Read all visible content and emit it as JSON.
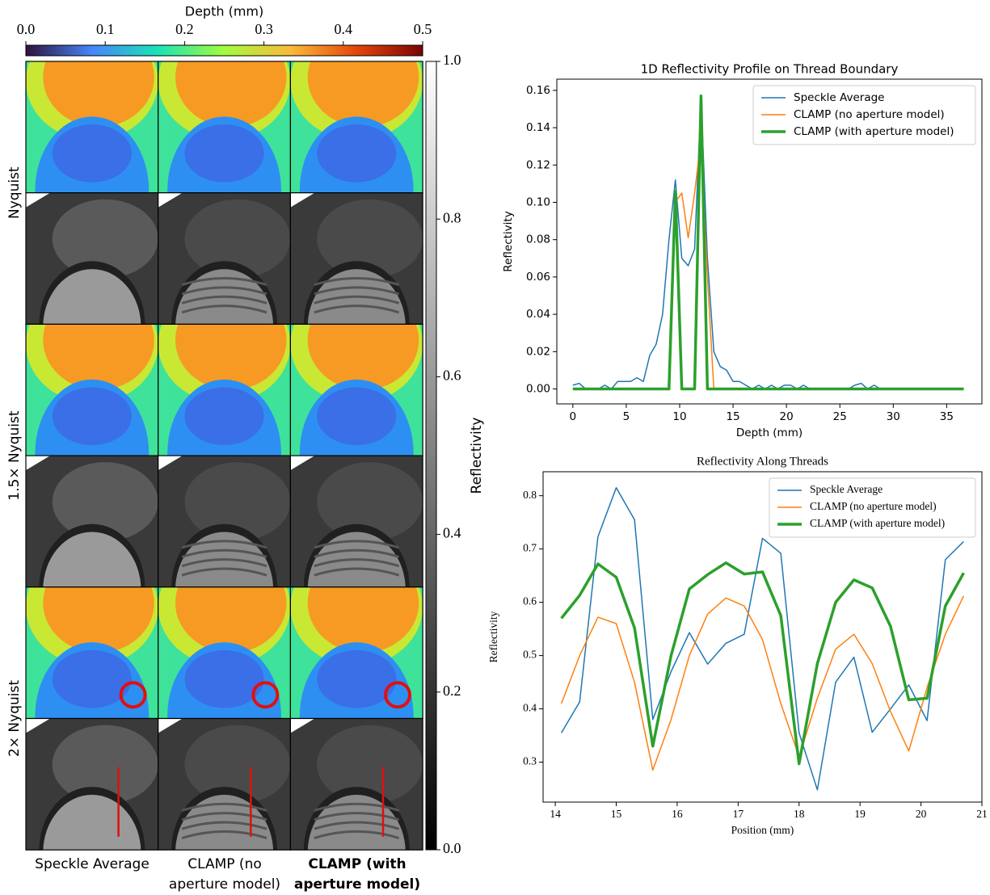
{
  "chart_data": [
    {
      "type": "image-grid",
      "row_labels": [
        "Nyquist",
        "1.5× Nyquist",
        "2× Nyquist"
      ],
      "column_labels": [
        "Speckle Average",
        "CLAMP (no aperture model)",
        "CLAMP (with aperture model)"
      ],
      "highlight_column": 2,
      "colorbars": [
        {
          "label": "Depth (mm)",
          "orientation": "horizontal",
          "lim": [
            0,
            0.5
          ],
          "ticks": [
            {
              "value": 0,
              "label": "0.0"
            },
            0.1,
            0.2,
            0.3,
            0.4,
            0.5
          ],
          "colors": [
            "#30123b",
            "#4686fb",
            "#1ae4b6",
            "#a2fc3c",
            "#faba39",
            "#e4460a",
            "#7a0403"
          ]
        },
        {
          "label": "Reflectivity",
          "orientation": "vertical",
          "lim": [
            0,
            1
          ],
          "ticks": [
            {
              "value": 0,
              "label": "0.0"
            },
            0.2,
            0.4,
            0.6,
            0.8,
            {
              "value": 1,
              "label": "1.0"
            }
          ],
          "colors": [
            "#000000",
            "#ffffff"
          ]
        }
      ]
    },
    {
      "type": "line",
      "title": "1D Reflectivity Profile on Thread Boundary",
      "x_label": "Depth (mm)",
      "y_label": "Reflectivity",
      "x": [
        0,
        0.6,
        1.2,
        1.8,
        2.4,
        3.0,
        3.6,
        4.2,
        4.8,
        5.4,
        6.0,
        6.6,
        7.2,
        7.8,
        8.4,
        9.0,
        9.6,
        10.2,
        10.8,
        11.4,
        12.0,
        12.6,
        13.2,
        13.8,
        14.4,
        15.0,
        15.6,
        16.2,
        16.8,
        17.4,
        18.0,
        18.6,
        19.2,
        19.8,
        20.4,
        21.0,
        21.6,
        22.2,
        22.8,
        23.4,
        24.0,
        24.6,
        25.2,
        25.8,
        26.4,
        27.0,
        27.6,
        28.2,
        28.8,
        29.4,
        30.0,
        30.6,
        31.2,
        31.8,
        32.4,
        33.0,
        33.6,
        34.2,
        34.8,
        35.4,
        36.0,
        36.6
      ],
      "series": [
        {
          "name": "Speckle Average",
          "color": "#1f77b4",
          "linewidth": 1.5,
          "values": [
            0.002,
            0.003,
            0,
            0,
            0,
            0.002,
            0,
            0.004,
            0.004,
            0.004,
            0.006,
            0.004,
            0.018,
            0.024,
            0.04,
            0.08,
            0.112,
            0.07,
            0.066,
            0.075,
            0.156,
            0.07,
            0.02,
            0.012,
            0.01,
            0.004,
            0.004,
            0.002,
            0,
            0.002,
            0,
            0.002,
            0,
            0.002,
            0.002,
            0,
            0.002,
            0,
            0,
            0,
            0,
            0,
            0,
            0,
            0.002,
            0.003,
            0,
            0.002,
            0,
            0,
            0,
            0,
            0,
            0,
            0,
            0,
            0,
            0,
            0,
            0,
            0,
            0
          ]
        },
        {
          "name": "CLAMP (no aperture model)",
          "color": "#ff7f0e",
          "linewidth": 1.5,
          "values": [
            0,
            0,
            0,
            0,
            0,
            0,
            0,
            0,
            0,
            0,
            0,
            0,
            0,
            0,
            0,
            0,
            0.1,
            0.105,
            0.081,
            0.105,
            0.134,
            0.06,
            0,
            0,
            0,
            0,
            0,
            0,
            0,
            0,
            0,
            0,
            0,
            0,
            0,
            0,
            0,
            0,
            0,
            0,
            0,
            0,
            0,
            0,
            0,
            0,
            0,
            0,
            0,
            0,
            0,
            0,
            0,
            0,
            0,
            0,
            0,
            0,
            0,
            0,
            0,
            0
          ]
        },
        {
          "name": "CLAMP (with aperture model)",
          "color": "#2ca02c",
          "linewidth": 3.5,
          "values": [
            0,
            0,
            0,
            0,
            0,
            0,
            0,
            0,
            0,
            0,
            0,
            0,
            0,
            0,
            0,
            0,
            0.106,
            0,
            0,
            0,
            0.157,
            0,
            0,
            0,
            0,
            0,
            0,
            0,
            0,
            0,
            0,
            0,
            0,
            0,
            0,
            0,
            0,
            0,
            0,
            0,
            0,
            0,
            0,
            0,
            0,
            0,
            0,
            0,
            0,
            0,
            0,
            0,
            0,
            0,
            0,
            0,
            0,
            0,
            0,
            0,
            0,
            0
          ]
        }
      ],
      "xlim": [
        -1.5,
        38.3
      ],
      "ylim": [
        -0.008,
        0.166
      ],
      "xticks": [
        0,
        5,
        10,
        15,
        20,
        25,
        30,
        35
      ],
      "yticks": [
        {
          "value": 0,
          "label": "0.00"
        },
        0.02,
        0.04,
        0.06,
        0.08,
        {
          "value": 0.1,
          "label": "0.10"
        },
        0.12,
        0.14,
        0.16
      ],
      "legend": "upper right"
    },
    {
      "type": "line",
      "title": "Reflectivity Along Threads",
      "x_label": "Position (mm)",
      "y_label": "Reflectivity",
      "x": [
        14.1,
        14.4,
        14.7,
        15.0,
        15.3,
        15.6,
        15.9,
        16.2,
        16.5,
        16.8,
        17.1,
        17.4,
        17.7,
        18.0,
        18.3,
        18.6,
        18.9,
        19.2,
        19.5,
        19.8,
        20.1,
        20.4,
        20.7
      ],
      "series": [
        {
          "name": "Speckle Average",
          "color": "#1f77b4",
          "linewidth": 1.5,
          "values": [
            0.355,
            0.413,
            0.723,
            0.815,
            0.755,
            0.38,
            0.47,
            0.543,
            0.484,
            0.523,
            0.54,
            0.72,
            0.692,
            0.355,
            0.248,
            0.45,
            0.497,
            0.356,
            0.4,
            0.445,
            0.378,
            0.68,
            0.714
          ]
        },
        {
          "name": "CLAMP (no aperture model)",
          "color": "#ff7f0e",
          "linewidth": 1.5,
          "values": [
            0.41,
            0.5,
            0.572,
            0.56,
            0.45,
            0.285,
            0.38,
            0.5,
            0.578,
            0.608,
            0.593,
            0.53,
            0.41,
            0.31,
            0.42,
            0.512,
            0.54,
            0.485,
            0.395,
            0.321,
            0.44,
            0.54,
            0.612
          ]
        },
        {
          "name": "CLAMP (with aperture model)",
          "color": "#2ca02c",
          "linewidth": 3.5,
          "values": [
            0.57,
            0.613,
            0.672,
            0.647,
            0.552,
            0.33,
            0.5,
            0.625,
            0.652,
            0.674,
            0.653,
            0.657,
            0.575,
            0.297,
            0.485,
            0.6,
            0.642,
            0.627,
            0.555,
            0.417,
            0.42,
            0.593,
            0.655
          ]
        }
      ],
      "xlim": [
        13.8,
        21.0
      ],
      "ylim": [
        0.225,
        0.845
      ],
      "xticks": [
        14,
        15,
        16,
        17,
        18,
        19,
        20,
        21
      ],
      "yticks": [
        0.3,
        0.4,
        0.5,
        0.6,
        0.7,
        0.8
      ],
      "legend": "upper right"
    }
  ]
}
